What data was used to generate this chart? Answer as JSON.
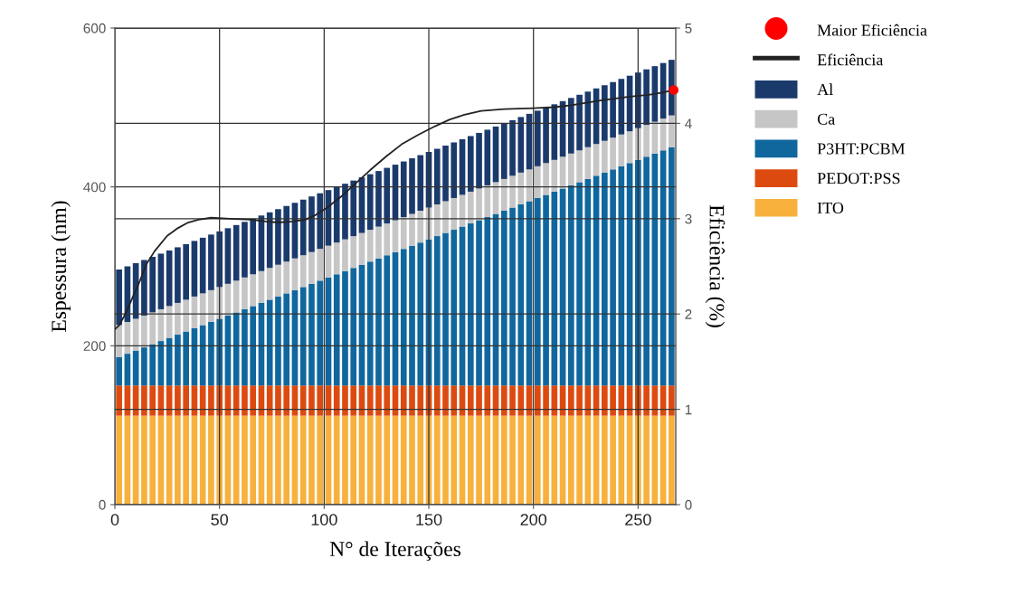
{
  "chart_data": {
    "type": "bar",
    "stacked": true,
    "xlabel": "N° de Iterações",
    "ylabel": "Espessura (nm)",
    "y2label": "Eficiência (%)",
    "x": [
      2,
      6,
      10,
      14,
      18,
      22,
      26,
      30,
      34,
      38,
      42,
      46,
      50,
      54,
      58,
      62,
      66,
      70,
      74,
      78,
      82,
      86,
      90,
      94,
      98,
      102,
      106,
      110,
      114,
      118,
      122,
      126,
      130,
      134,
      138,
      142,
      146,
      150,
      154,
      158,
      162,
      166,
      170,
      174,
      178,
      182,
      186,
      190,
      194,
      198,
      202,
      206,
      210,
      214,
      218,
      222,
      226,
      230,
      234,
      238,
      242,
      246,
      250,
      254,
      258,
      262,
      266
    ],
    "xlim": [
      0,
      268
    ],
    "xticks": [
      0,
      50,
      100,
      150,
      200,
      250
    ],
    "ylim": [
      0,
      600
    ],
    "yticks": [
      0,
      200,
      400,
      600
    ],
    "y2lim": [
      0,
      5
    ],
    "y2ticks": [
      0,
      1,
      2,
      3,
      4,
      5
    ],
    "grid": true,
    "legend": "right",
    "series": [
      {
        "name": "ITO",
        "color": "#f7b13c",
        "values": [
          112,
          112,
          112,
          112,
          112,
          112,
          112,
          112,
          112,
          112,
          112,
          112,
          112,
          112,
          112,
          112,
          112,
          112,
          112,
          112,
          112,
          112,
          112,
          112,
          112,
          112,
          112,
          112,
          112,
          112,
          112,
          112,
          112,
          112,
          112,
          112,
          112,
          112,
          112,
          112,
          112,
          112,
          112,
          112,
          112,
          112,
          112,
          112,
          112,
          112,
          112,
          112,
          112,
          112,
          112,
          112,
          112,
          112,
          112,
          112,
          112,
          112,
          112,
          112,
          112,
          112,
          112
        ]
      },
      {
        "name": "PEDOT:PSS",
        "color": "#dd4a10",
        "values": [
          38,
          38,
          38,
          38,
          38,
          38,
          38,
          38,
          38,
          38,
          38,
          38,
          38,
          38,
          38,
          38,
          38,
          38,
          38,
          38,
          38,
          38,
          38,
          38,
          38,
          38,
          38,
          38,
          38,
          38,
          38,
          38,
          38,
          38,
          38,
          38,
          38,
          38,
          38,
          38,
          38,
          38,
          38,
          38,
          38,
          38,
          38,
          38,
          38,
          38,
          38,
          38,
          38,
          38,
          38,
          38,
          38,
          38,
          38,
          38,
          38,
          38,
          38,
          38,
          38,
          38,
          38
        ]
      },
      {
        "name": "P3HT:PCBM",
        "color": "#0f679e",
        "values": [
          36,
          40,
          44,
          48,
          52,
          56,
          60,
          64,
          68,
          72,
          76,
          80,
          84,
          88,
          92,
          96,
          100,
          104,
          108,
          112,
          116,
          120,
          124,
          128,
          132,
          136,
          140,
          144,
          148,
          152,
          156,
          160,
          164,
          168,
          172,
          176,
          180,
          184,
          188,
          192,
          196,
          200,
          204,
          208,
          212,
          216,
          220,
          224,
          228,
          232,
          236,
          240,
          244,
          248,
          252,
          256,
          260,
          264,
          268,
          272,
          276,
          280,
          284,
          288,
          292,
          296,
          300
        ]
      },
      {
        "name": "Ca",
        "color": "#c6c6c6",
        "values": [
          40,
          40,
          40,
          40,
          40,
          40,
          40,
          40,
          40,
          40,
          40,
          40,
          40,
          40,
          40,
          40,
          40,
          40,
          40,
          40,
          40,
          40,
          40,
          40,
          40,
          40,
          40,
          40,
          40,
          40,
          40,
          40,
          40,
          40,
          40,
          40,
          40,
          40,
          40,
          40,
          40,
          40,
          40,
          40,
          40,
          40,
          40,
          40,
          40,
          40,
          40,
          40,
          40,
          40,
          40,
          40,
          40,
          40,
          40,
          40,
          40,
          40,
          40,
          40,
          40,
          40,
          40
        ]
      },
      {
        "name": "Al",
        "color": "#1b3a6c",
        "values": [
          70,
          70,
          70,
          70,
          70,
          70,
          70,
          70,
          70,
          70,
          70,
          70,
          70,
          70,
          70,
          70,
          70,
          70,
          70,
          70,
          70,
          70,
          70,
          70,
          70,
          70,
          70,
          70,
          70,
          70,
          70,
          70,
          70,
          70,
          70,
          70,
          70,
          70,
          70,
          70,
          70,
          70,
          70,
          70,
          70,
          70,
          70,
          70,
          70,
          70,
          70,
          70,
          70,
          70,
          70,
          70,
          70,
          70,
          70,
          70,
          70,
          70,
          70,
          70,
          70,
          70,
          70
        ]
      },
      {
        "name": "Eficiência",
        "type": "line",
        "axis": "y2",
        "color": "#222222",
        "x": [
          0,
          2,
          5,
          8,
          12,
          15,
          19,
          25,
          30,
          35,
          40,
          46,
          55,
          65,
          72,
          78,
          85,
          91,
          96,
          101,
          108,
          115,
          122,
          130,
          137,
          145,
          153,
          160,
          167,
          175,
          186,
          200,
          210,
          218,
          232,
          246,
          255,
          261,
          267
        ],
        "values": [
          1.84,
          1.88,
          2.0,
          2.15,
          2.35,
          2.52,
          2.66,
          2.82,
          2.9,
          2.96,
          2.99,
          3.01,
          3.0,
          2.99,
          2.97,
          2.96,
          2.97,
          2.99,
          3.04,
          3.11,
          3.23,
          3.37,
          3.51,
          3.66,
          3.78,
          3.88,
          3.97,
          4.04,
          4.09,
          4.13,
          4.15,
          4.16,
          4.17,
          4.19,
          4.24,
          4.28,
          4.3,
          4.32,
          4.35
        ]
      },
      {
        "name": "Maior Eficiência",
        "type": "scatter",
        "axis": "y2",
        "marker": "circle",
        "color": "#ff0000",
        "x": [
          267
        ],
        "values": [
          4.35
        ]
      }
    ]
  }
}
